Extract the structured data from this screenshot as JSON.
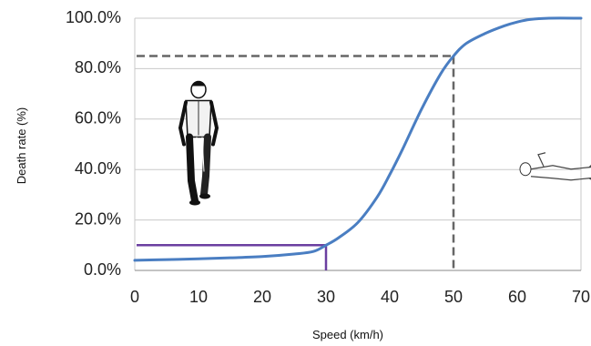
{
  "chart_data": {
    "type": "line",
    "title": "",
    "xlabel": "Speed (km/h)",
    "ylabel": "Death rate (%)",
    "xlim": [
      0,
      70
    ],
    "ylim": [
      0,
      100
    ],
    "x_ticks": [
      "0",
      "10",
      "20",
      "30",
      "40",
      "50",
      "60",
      "70"
    ],
    "y_ticks": [
      "0.0%",
      "20.0%",
      "40.0%",
      "60.0%",
      "80.0%",
      "100.0%"
    ],
    "grid": "horizontal",
    "series": [
      {
        "name": "",
        "color": "#4a7ec2",
        "x": [
          0,
          5,
          10,
          15,
          20,
          25,
          28,
          30,
          32,
          35,
          38,
          40,
          42,
          45,
          48,
          50,
          52,
          55,
          58,
          60,
          62,
          65,
          70
        ],
        "y": [
          4,
          4.3,
          4.6,
          5,
          5.5,
          6.5,
          7.5,
          10,
          13,
          19,
          29,
          38,
          48,
          64,
          78,
          85,
          90,
          94,
          97,
          98.5,
          99.5,
          100,
          100
        ]
      }
    ],
    "annotations": [
      {
        "type": "reference-lines",
        "style": "solid",
        "color": "#6b3fa0",
        "x": 30,
        "y": 10
      },
      {
        "type": "reference-lines",
        "style": "dashed",
        "color": "#666666",
        "x": 50,
        "y": 85
      }
    ],
    "illustrations": [
      {
        "icon": "walking-pedestrian-icon",
        "near_x": 10,
        "near_y": 50
      },
      {
        "icon": "lying-pedestrian-icon",
        "near_x": 67,
        "near_y": 38
      }
    ]
  }
}
